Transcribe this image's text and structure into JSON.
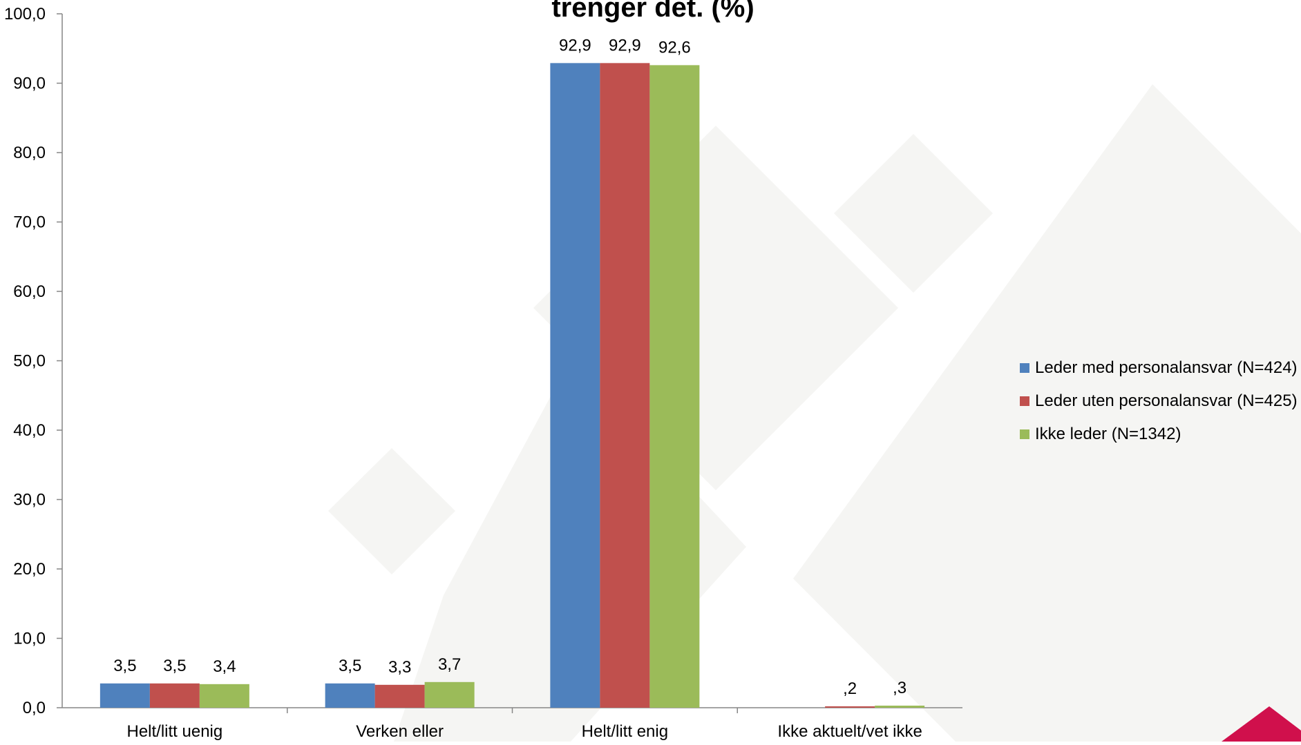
{
  "chart_data": {
    "type": "bar",
    "title": "trenger det. (%)",
    "xlabel": "",
    "ylabel": "",
    "ylim": [
      0,
      100
    ],
    "y_ticks": [
      "0,0",
      "10,0",
      "20,0",
      "30,0",
      "40,0",
      "50,0",
      "60,0",
      "70,0",
      "80,0",
      "90,0",
      "100,0"
    ],
    "y_tick_values": [
      0,
      10,
      20,
      30,
      40,
      50,
      60,
      70,
      80,
      90,
      100
    ],
    "categories": [
      "Helt/litt uenig",
      "Verken eller",
      "Helt/litt enig",
      "Ikke aktuelt/vet ikke"
    ],
    "grid": false,
    "legend_position": "right",
    "series": [
      {
        "name": "Leder med personalansvar (N=424)",
        "color": "#4F81BD",
        "values": [
          3.5,
          3.5,
          92.9,
          null
        ],
        "labels": [
          "3,5",
          "3,5",
          "92,9",
          ""
        ]
      },
      {
        "name": "Leder uten personalansvar (N=425)",
        "color": "#C0504D",
        "values": [
          3.5,
          3.3,
          92.9,
          0.2
        ],
        "labels": [
          "3,5",
          "3,3",
          "92,9",
          ",2"
        ]
      },
      {
        "name": "Ikke leder (N=1342)",
        "color": "#9BBB59",
        "values": [
          3.4,
          3.7,
          92.6,
          0.3
        ],
        "labels": [
          "3,4",
          "3,7",
          "92,6",
          ",3"
        ]
      }
    ]
  },
  "colors": {
    "background_shapes": "#F5F5F3",
    "corner_accent": "#D0104C",
    "axis": "#868686"
  }
}
